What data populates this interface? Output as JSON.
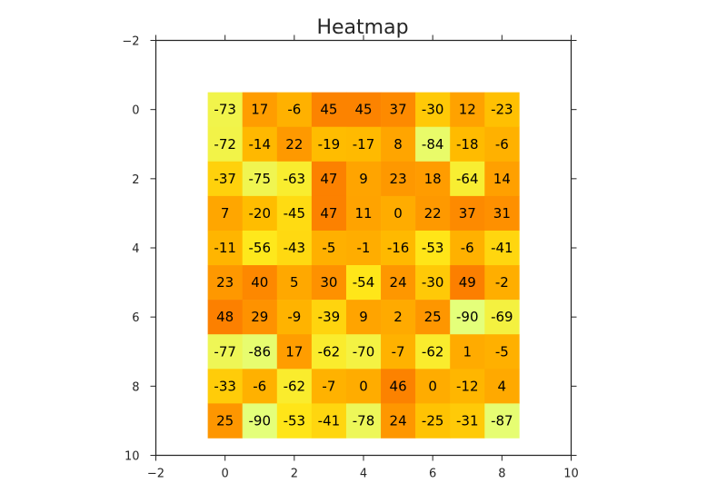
{
  "chart_data": {
    "type": "heatmap",
    "title": "Heatmap",
    "xlabel": "",
    "ylabel": "",
    "xlim": [
      -2,
      10
    ],
    "ylim": [
      10,
      -2
    ],
    "x_ticks": [
      -2,
      0,
      2,
      4,
      6,
      8,
      10
    ],
    "y_ticks": [
      -2,
      0,
      2,
      4,
      6,
      8,
      10
    ],
    "x_tick_labels": [
      "−2",
      "0",
      "2",
      "4",
      "6",
      "8",
      "10"
    ],
    "y_tick_labels": [
      "−2",
      "0",
      "2",
      "4",
      "6",
      "8",
      "10"
    ],
    "grid": false,
    "colormap": "Wistia",
    "value_range": [
      -90,
      49
    ],
    "colors": {
      "low": "#e4ff7a",
      "mid_low": "#ffe81a",
      "mid": "#ffbd00",
      "mid_high": "#ffa000",
      "high": "#fc7f00"
    },
    "rows": 10,
    "cols": 9,
    "values": [
      [
        -73,
        17,
        -6,
        45,
        45,
        37,
        -30,
        12,
        -23
      ],
      [
        -72,
        -14,
        22,
        -19,
        -17,
        8,
        -84,
        -18,
        -6
      ],
      [
        -37,
        -75,
        -63,
        47,
        9,
        23,
        18,
        -64,
        14
      ],
      [
        7,
        -20,
        -45,
        47,
        11,
        0,
        22,
        37,
        31
      ],
      [
        -11,
        -56,
        -43,
        -5,
        -1,
        -16,
        -53,
        -6,
        -41
      ],
      [
        23,
        40,
        5,
        30,
        -54,
        24,
        -30,
        49,
        -2
      ],
      [
        48,
        29,
        -9,
        -39,
        9,
        2,
        25,
        -90,
        -69
      ],
      [
        -77,
        -86,
        17,
        -62,
        -70,
        -7,
        -62,
        1,
        -5
      ],
      [
        -33,
        -6,
        -62,
        -7,
        0,
        46,
        0,
        -12,
        4
      ],
      [
        25,
        -90,
        -53,
        -41,
        -78,
        24,
        -25,
        -31,
        -87
      ]
    ]
  }
}
